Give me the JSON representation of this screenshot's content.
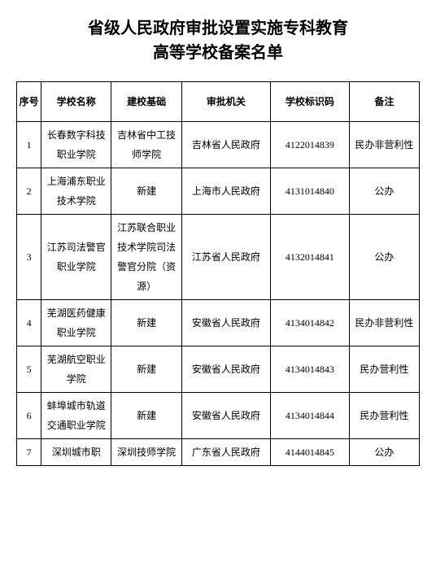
{
  "title_line1": "省级人民政府审批设置实施专科教育",
  "title_line2": "高等学校备案名单",
  "headers": {
    "seq": "序号",
    "name": "学校名称",
    "basis": "建校基础",
    "auth": "审批机关",
    "code": "学校标识码",
    "remark": "备注"
  },
  "rows": [
    {
      "seq": "1",
      "name": "长春数字科技职业学院",
      "basis": "吉林省中工技师学院",
      "auth": "吉林省人民政府",
      "code": "4122014839",
      "remark": "民办非营利性"
    },
    {
      "seq": "2",
      "name": "上海浦东职业技术学院",
      "basis": "新建",
      "auth": "上海市人民政府",
      "code": "4131014840",
      "remark": "公办"
    },
    {
      "seq": "3",
      "name": "江苏司法警官职业学院",
      "basis": "江苏联合职业技术学院司法警官分院（资源）",
      "auth": "江苏省人民政府",
      "code": "4132014841",
      "remark": "公办"
    },
    {
      "seq": "4",
      "name": "芜湖医药健康职业学院",
      "basis": "新建",
      "auth": "安徽省人民政府",
      "code": "4134014842",
      "remark": "民办非营利性"
    },
    {
      "seq": "5",
      "name": "芜湖航空职业学院",
      "basis": "新建",
      "auth": "安徽省人民政府",
      "code": "4134014843",
      "remark": "民办营利性"
    },
    {
      "seq": "6",
      "name": "蚌埠城市轨道交通职业学院",
      "basis": "新建",
      "auth": "安徽省人民政府",
      "code": "4134014844",
      "remark": "民办营利性"
    },
    {
      "seq": "7",
      "name": "深圳城市职",
      "basis": "深圳技师学院",
      "auth": "广东省人民政府",
      "code": "4144014845",
      "remark": "公办"
    }
  ]
}
